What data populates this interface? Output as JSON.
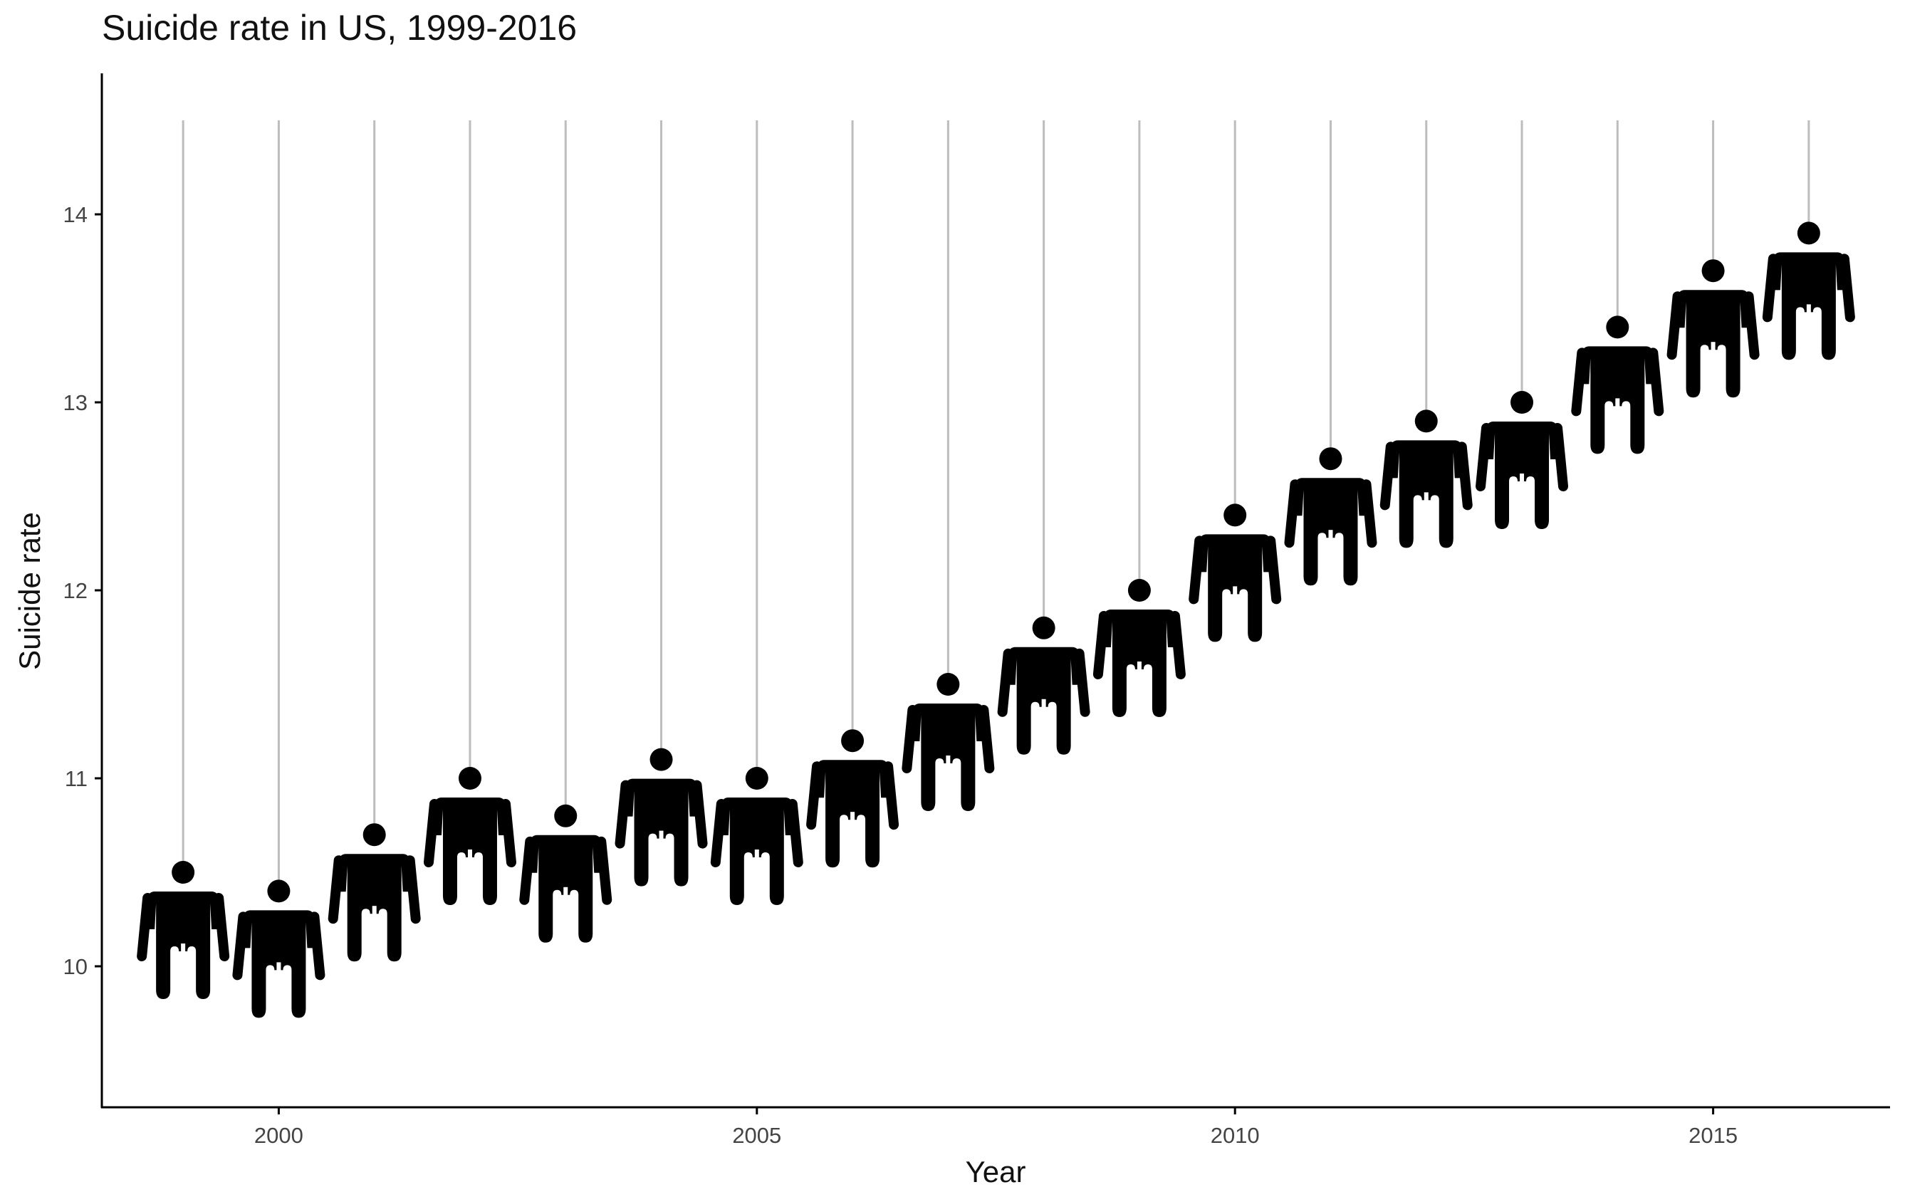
{
  "chart_data": {
    "type": "pictograph",
    "title": "Suicide rate in US, 1999-2016",
    "xlabel": "Year",
    "ylabel": "Suicide rate",
    "x": [
      1999,
      2000,
      2001,
      2002,
      2003,
      2004,
      2005,
      2006,
      2007,
      2008,
      2009,
      2010,
      2011,
      2012,
      2013,
      2014,
      2015,
      2016
    ],
    "values": [
      10.5,
      10.4,
      10.7,
      11.0,
      10.8,
      11.1,
      11.0,
      11.2,
      11.5,
      11.8,
      12.0,
      12.4,
      12.7,
      12.9,
      13.0,
      13.4,
      13.7,
      13.9
    ],
    "xticks": [
      2000,
      2005,
      2010,
      2015
    ],
    "xtick_labels": [
      "2000",
      "2005",
      "2010",
      "2015"
    ],
    "yticks": [
      10,
      11,
      12,
      13,
      14
    ],
    "ytick_labels": [
      "10",
      "11",
      "12",
      "13",
      "14"
    ],
    "xlim": [
      1998.15,
      2016.85
    ],
    "ylim": [
      9.25,
      14.75
    ],
    "stem_top": 14.5,
    "grid": false,
    "marker_icon": "person-icon",
    "stem_color": "#bdbdbd",
    "marker_color": "#000000",
    "axis_color": "#000000"
  }
}
